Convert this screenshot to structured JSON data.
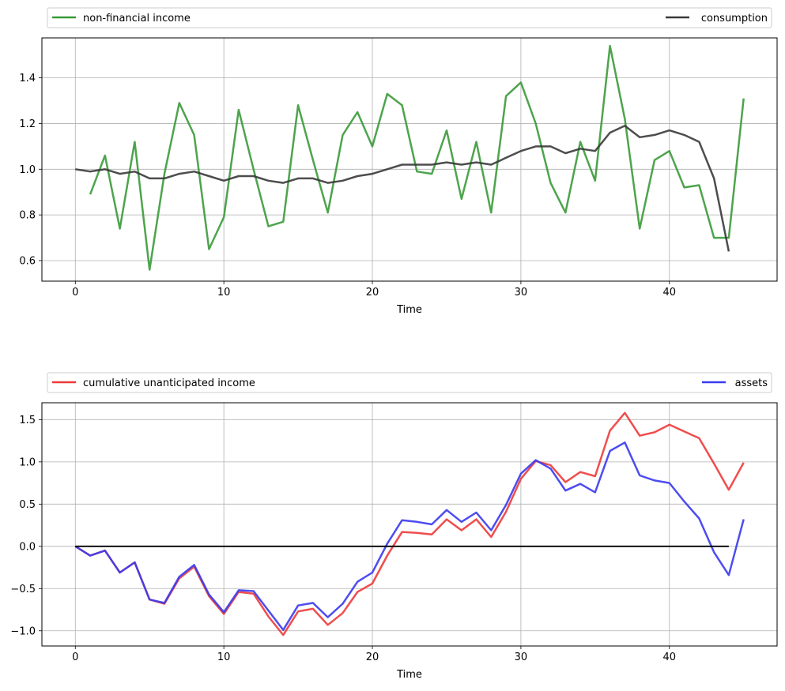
{
  "chart_data": [
    {
      "type": "line",
      "title": "",
      "xlabel": "Time",
      "ylabel": "",
      "xlim": [
        -2.25,
        47.25
      ],
      "ylim": [
        0.51,
        1.575
      ],
      "x_ticks": [
        0,
        10,
        20,
        30,
        40
      ],
      "y_ticks": [
        0.6,
        0.8,
        1.0,
        1.2,
        1.4
      ],
      "x_tick_labels": [
        "0",
        "10",
        "20",
        "30",
        "40"
      ],
      "y_tick_labels": [
        "0.6",
        "0.8",
        "1.0",
        "1.2",
        "1.4"
      ],
      "grid": true,
      "legend_placement": "top",
      "series": [
        {
          "name": "non-financial income",
          "color": "#3a9a3a",
          "x": [
            1,
            2,
            3,
            4,
            5,
            6,
            7,
            8,
            9,
            10,
            11,
            12,
            13,
            14,
            15,
            16,
            17,
            18,
            19,
            20,
            21,
            22,
            23,
            24,
            25,
            26,
            27,
            28,
            29,
            30,
            31,
            32,
            33,
            34,
            35,
            36,
            37,
            38,
            39,
            40,
            41,
            42,
            43,
            44,
            45
          ],
          "values": [
            0.89,
            1.06,
            0.74,
            1.12,
            0.56,
            0.98,
            1.29,
            1.15,
            0.65,
            0.79,
            1.26,
            1.0,
            0.75,
            0.77,
            1.28,
            1.04,
            0.81,
            1.15,
            1.25,
            1.1,
            1.33,
            1.28,
            0.99,
            0.98,
            1.17,
            0.87,
            1.12,
            0.81,
            1.32,
            1.38,
            1.2,
            0.94,
            0.81,
            1.12,
            0.95,
            1.54,
            1.22,
            0.74,
            1.04,
            1.08,
            0.92,
            0.93,
            0.7,
            0.7,
            1.31
          ]
        },
        {
          "name": "consumption",
          "color": "#3a3a3a",
          "x": [
            0,
            1,
            2,
            3,
            4,
            5,
            6,
            7,
            8,
            9,
            10,
            11,
            12,
            13,
            14,
            15,
            16,
            17,
            18,
            19,
            20,
            21,
            22,
            23,
            24,
            25,
            26,
            27,
            28,
            29,
            30,
            31,
            32,
            33,
            34,
            35,
            36,
            37,
            38,
            39,
            40,
            41,
            42,
            43,
            44
          ],
          "values": [
            1.0,
            0.99,
            1.0,
            0.98,
            0.99,
            0.96,
            0.96,
            0.98,
            0.99,
            0.97,
            0.95,
            0.97,
            0.97,
            0.95,
            0.94,
            0.96,
            0.96,
            0.94,
            0.95,
            0.97,
            0.98,
            1.0,
            1.02,
            1.02,
            1.02,
            1.03,
            1.02,
            1.03,
            1.02,
            1.05,
            1.08,
            1.1,
            1.1,
            1.07,
            1.09,
            1.08,
            1.16,
            1.19,
            1.14,
            1.15,
            1.17,
            1.15,
            1.12,
            0.96,
            0.64
          ]
        }
      ]
    },
    {
      "type": "line",
      "title": "",
      "xlabel": "Time",
      "ylabel": "",
      "xlim": [
        -2.25,
        47.25
      ],
      "ylim": [
        -1.18,
        1.7
      ],
      "x_ticks": [
        0,
        10,
        20,
        30,
        40
      ],
      "y_ticks": [
        -1.0,
        -0.5,
        0.0,
        0.5,
        1.0,
        1.5
      ],
      "x_tick_labels": [
        "0",
        "10",
        "20",
        "30",
        "40"
      ],
      "y_tick_labels": [
        "−1.0",
        "−0.5",
        "0.0",
        "0.5",
        "1.0",
        "1.5"
      ],
      "grid": true,
      "legend_placement": "top",
      "series": [
        {
          "name": "cumulative unanticipated income",
          "color": "#ee3a3a",
          "x": [
            0,
            1,
            2,
            3,
            4,
            5,
            6,
            7,
            8,
            9,
            10,
            11,
            12,
            13,
            14,
            15,
            16,
            17,
            18,
            19,
            20,
            21,
            22,
            23,
            24,
            25,
            26,
            27,
            28,
            29,
            30,
            31,
            32,
            33,
            34,
            35,
            36,
            37,
            38,
            39,
            40,
            41,
            42,
            43,
            44,
            45
          ],
          "values": [
            0.0,
            -0.11,
            -0.05,
            -0.31,
            -0.19,
            -0.63,
            -0.68,
            -0.38,
            -0.24,
            -0.59,
            -0.8,
            -0.54,
            -0.56,
            -0.83,
            -1.05,
            -0.77,
            -0.74,
            -0.93,
            -0.79,
            -0.54,
            -0.44,
            -0.11,
            0.17,
            0.16,
            0.14,
            0.32,
            0.19,
            0.32,
            0.11,
            0.41,
            0.8,
            1.01,
            0.96,
            0.76,
            0.88,
            0.83,
            1.37,
            1.58,
            1.31,
            1.35,
            1.44,
            1.36,
            1.28,
            0.98,
            0.67,
            0.99
          ]
        },
        {
          "name": "assets",
          "color": "#3a3aee",
          "x": [
            0,
            1,
            2,
            3,
            4,
            5,
            6,
            7,
            8,
            9,
            10,
            11,
            12,
            13,
            14,
            15,
            16,
            17,
            18,
            19,
            20,
            21,
            22,
            23,
            24,
            25,
            26,
            27,
            28,
            29,
            30,
            31,
            32,
            33,
            34,
            35,
            36,
            37,
            38,
            39,
            40,
            41,
            42,
            43,
            44,
            45
          ],
          "values": [
            0.0,
            -0.11,
            -0.05,
            -0.31,
            -0.19,
            -0.63,
            -0.67,
            -0.36,
            -0.22,
            -0.57,
            -0.78,
            -0.52,
            -0.53,
            -0.76,
            -0.99,
            -0.7,
            -0.67,
            -0.84,
            -0.68,
            -0.42,
            -0.31,
            0.03,
            0.31,
            0.29,
            0.26,
            0.43,
            0.29,
            0.4,
            0.19,
            0.49,
            0.86,
            1.02,
            0.92,
            0.66,
            0.74,
            0.64,
            1.13,
            1.23,
            0.84,
            0.78,
            0.75,
            0.53,
            0.33,
            -0.07,
            -0.34,
            0.32
          ]
        },
        {
          "name": "",
          "color": "#000000",
          "x": [
            0,
            44
          ],
          "values": [
            0,
            0
          ]
        }
      ]
    }
  ]
}
